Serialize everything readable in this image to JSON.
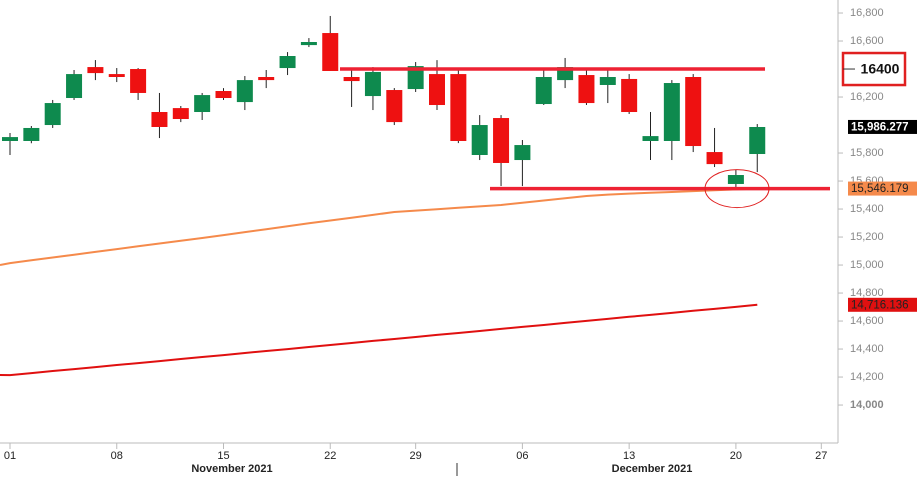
{
  "chart_data": {
    "type": "candlestick",
    "categories": [
      "01",
      null,
      null,
      null,
      null,
      "08",
      null,
      null,
      null,
      null,
      "15",
      null,
      null,
      null,
      null,
      "22",
      null,
      null,
      null,
      "29",
      null,
      null,
      null,
      null,
      "06",
      null,
      null,
      null,
      null,
      "13",
      null,
      null,
      null,
      null,
      "20",
      null,
      null,
      null,
      "27"
    ],
    "x_groups": [
      "November 2021",
      "December 2021"
    ],
    "open": [
      15886,
      15886,
      16000,
      16193,
      16414,
      16364,
      16400,
      16093,
      16121,
      16093,
      16243,
      16164,
      16343,
      16407,
      16571,
      16657,
      16343,
      16207,
      16250,
      16257,
      16364,
      16364,
      15786,
      16050,
      15750,
      16150,
      16321,
      16357,
      16286,
      16329,
      15886,
      15886,
      16343,
      15807,
      15579,
      15793,
      null,
      null,
      null
    ],
    "high": [
      15943,
      15993,
      16179,
      16393,
      16464,
      16407,
      16407,
      16229,
      16136,
      16229,
      16264,
      16350,
      16393,
      16521,
      16621,
      16779,
      16393,
      16414,
      16264,
      16450,
      16464,
      16407,
      16071,
      16071,
      15893,
      16393,
      16479,
      16407,
      16393,
      16364,
      16093,
      16321,
      16364,
      15979,
      15679,
      16007,
      null,
      null,
      null
    ],
    "low": [
      15786,
      15870,
      15979,
      16179,
      16321,
      16307,
      16179,
      15907,
      16021,
      16036,
      16179,
      16107,
      16264,
      16357,
      16557,
      16386,
      16129,
      16107,
      16000,
      16236,
      16107,
      15871,
      15750,
      15564,
      15564,
      16143,
      16264,
      16143,
      16157,
      16079,
      15750,
      15750,
      15807,
      15700,
      15550,
      15664,
      null,
      null,
      null
    ],
    "close": [
      15914,
      15979,
      16157,
      16364,
      16371,
      16343,
      16229,
      15986,
      16043,
      16214,
      16193,
      16321,
      16321,
      16493,
      16593,
      16386,
      16314,
      16379,
      16021,
      16421,
      16143,
      15886,
      16000,
      15729,
      15857,
      16343,
      16414,
      16157,
      16343,
      16093,
      15921,
      16300,
      15850,
      15721,
      15643,
      15986,
      null,
      null,
      null
    ],
    "up_color": "#0e8a4e",
    "down_color": "#ee1111",
    "lines": [
      {
        "color": "#f58a4b",
        "values": [
          15014,
          15034,
          15054,
          15074,
          15094,
          15114,
          15134,
          15154,
          15174,
          15193,
          15214,
          15235,
          15256,
          15277,
          15298,
          15318,
          15338,
          15358,
          15379,
          15389,
          15399,
          15409,
          15419,
          15429,
          15445,
          15461,
          15477,
          15493,
          15503,
          15510,
          15516,
          15522,
          15528,
          15534,
          15540,
          15546,
          null,
          null,
          null
        ]
      },
      {
        "color": "#e01010",
        "values": [
          14214,
          14228,
          14243,
          14257,
          14271,
          14286,
          14300,
          14314,
          14329,
          14343,
          14357,
          14372,
          14386,
          14400,
          14415,
          14429,
          14443,
          14458,
          14472,
          14486,
          14501,
          14515,
          14529,
          14544,
          14558,
          14572,
          14587,
          14601,
          14615,
          14630,
          14644,
          14658,
          14673,
          14687,
          14701,
          14716,
          null,
          null,
          null
        ]
      }
    ],
    "levels": [
      {
        "value": 16400,
        "color": "#ee2233"
      },
      {
        "value": 15546.179,
        "color": "#ee2233"
      }
    ],
    "price_labels": [
      {
        "value": 15986.277,
        "label": "15,986.277",
        "color": "#000000",
        "text_color": "#ffffff"
      },
      {
        "value": 15546.179,
        "label": "15,546.179",
        "color": "#f58a4b",
        "text_color": "#222222"
      },
      {
        "value": 14716.136,
        "label": "14,716.136",
        "color": "#e01010",
        "text_color": "#222222"
      }
    ],
    "ylim": [
      13729,
      16893
    ],
    "yticks": [
      {
        "value": 14000,
        "label": "14,000"
      },
      {
        "value": 14200,
        "label": "14,200"
      },
      {
        "value": 14400,
        "label": "14,400"
      },
      {
        "value": 14600,
        "label": "14,600"
      },
      {
        "value": 14800,
        "label": "14,800"
      },
      {
        "value": 15000,
        "label": "15,000"
      },
      {
        "value": 15200,
        "label": "15,200"
      },
      {
        "value": 15400,
        "label": "15,400"
      },
      {
        "value": 15600,
        "label": "15,600"
      },
      {
        "value": 15800,
        "label": "15,800"
      },
      {
        "value": 16200,
        "label": "16,200"
      },
      {
        "value": 16600,
        "label": "16,600"
      },
      {
        "value": 16800,
        "label": "16,800"
      }
    ]
  }
}
